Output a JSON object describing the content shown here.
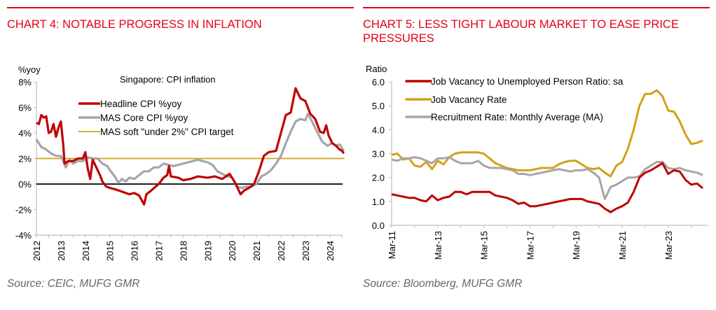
{
  "panels": [
    {
      "title": "CHART 4: NOTABLE PROGRESS IN INFLATION",
      "source": "Source: CEIC, MUFG GMR"
    },
    {
      "title": "CHART 5: LESS TIGHT LABOUR MARKET TO EASE PRICE PRESSURES",
      "title_lines": [
        "CHART 5: LESS TIGHT LABOUR MARKET TO EASE PRICE",
        "PRESSURES"
      ],
      "source": "Source: Bloomberg, MUFG GMR"
    }
  ],
  "colors": {
    "accent": "#e2001a",
    "red": "#c00000",
    "grey": "#a6a6a6",
    "gold": "#d4a017",
    "black": "#000000"
  },
  "chart_data": [
    {
      "type": "line",
      "title": "Singapore: CPI inflation",
      "ylabel": "%yoy",
      "xlabel": "",
      "ylim": [
        -4,
        8
      ],
      "yticks": [
        8,
        6,
        4,
        2,
        0,
        -2,
        -4
      ],
      "ytick_labels": [
        "8%",
        "6%",
        "4%",
        "2%",
        "0%",
        "-2%",
        "-4%"
      ],
      "xlim": [
        2012,
        2024.6
      ],
      "xticks": [
        2012,
        2013,
        2014,
        2015,
        2016,
        2017,
        2018,
        2019,
        2020,
        2021,
        2022,
        2023,
        2024
      ],
      "xtick_labels": [
        "2012",
        "2013",
        "2014",
        "2015",
        "2016",
        "2017",
        "2018",
        "2019",
        "2020",
        "2021",
        "2022",
        "2023",
        "2024"
      ],
      "grid": false,
      "legend": "top-left",
      "series": [
        {
          "name": "Headline CPI %yoy",
          "color": "#c00000",
          "x": [
            2012.0,
            2012.1,
            2012.2,
            2012.3,
            2012.4,
            2012.5,
            2012.6,
            2012.7,
            2012.8,
            2012.9,
            2013.0,
            2013.1,
            2013.15,
            2013.3,
            2013.5,
            2013.7,
            2013.9,
            2014.0,
            2014.1,
            2014.2,
            2014.3,
            2014.45,
            2014.6,
            2014.7,
            2014.85,
            2015.0,
            2015.2,
            2015.5,
            2015.8,
            2016.0,
            2016.2,
            2016.4,
            2016.5,
            2016.7,
            2017.0,
            2017.2,
            2017.35,
            2017.42,
            2017.5,
            2017.8,
            2018.0,
            2018.3,
            2018.6,
            2019.0,
            2019.3,
            2019.6,
            2019.9,
            2020.1,
            2020.35,
            2020.5,
            2020.7,
            2020.9,
            2021.1,
            2021.3,
            2021.5,
            2021.8,
            2022.0,
            2022.2,
            2022.4,
            2022.6,
            2022.7,
            2022.8,
            2023.0,
            2023.2,
            2023.4,
            2023.6,
            2023.75,
            2023.85,
            2023.95,
            2024.1,
            2024.25,
            2024.4,
            2024.5,
            2024.57
          ],
          "y": [
            4.8,
            4.7,
            5.4,
            5.2,
            5.3,
            4.0,
            4.1,
            4.7,
            3.7,
            4.4,
            4.9,
            3.0,
            1.6,
            1.8,
            1.8,
            2.0,
            2.0,
            2.5,
            1.2,
            0.4,
            1.9,
            1.3,
            0.7,
            0.2,
            -0.2,
            -0.3,
            -0.4,
            -0.6,
            -0.8,
            -0.7,
            -0.9,
            -1.6,
            -0.8,
            -0.5,
            0.0,
            0.5,
            0.7,
            1.4,
            0.6,
            0.5,
            0.3,
            0.4,
            0.6,
            0.5,
            0.6,
            0.4,
            0.8,
            0.2,
            -0.8,
            -0.5,
            -0.3,
            0.0,
            1.0,
            2.2,
            2.5,
            2.6,
            4.0,
            5.4,
            5.6,
            7.5,
            7.1,
            6.7,
            6.5,
            5.5,
            5.1,
            4.1,
            4.0,
            4.6,
            3.8,
            3.2,
            3.0,
            2.7,
            2.6,
            2.4
          ]
        },
        {
          "name": "MAS Core CPI %yoy",
          "color": "#a6a6a6",
          "x": [
            2012.0,
            2012.2,
            2012.4,
            2012.6,
            2012.8,
            2013.0,
            2013.1,
            2013.2,
            2013.35,
            2013.5,
            2013.7,
            2013.9,
            2014.1,
            2014.3,
            2014.5,
            2014.7,
            2014.9,
            2015.0,
            2015.2,
            2015.35,
            2015.5,
            2015.65,
            2015.8,
            2016.0,
            2016.2,
            2016.4,
            2016.6,
            2016.8,
            2017.0,
            2017.2,
            2017.4,
            2017.6,
            2017.8,
            2018.0,
            2018.2,
            2018.4,
            2018.6,
            2018.8,
            2019.0,
            2019.2,
            2019.4,
            2019.6,
            2019.8,
            2020.0,
            2020.2,
            2020.4,
            2020.6,
            2020.8,
            2021.0,
            2021.2,
            2021.4,
            2021.6,
            2021.8,
            2022.0,
            2022.2,
            2022.4,
            2022.6,
            2022.8,
            2023.0,
            2023.1,
            2023.3,
            2023.5,
            2023.7,
            2023.9,
            2024.0,
            2024.1,
            2024.25,
            2024.4,
            2024.57
          ],
          "y": [
            3.5,
            2.9,
            2.7,
            2.4,
            2.2,
            2.2,
            1.8,
            1.3,
            1.9,
            1.6,
            1.8,
            1.8,
            2.1,
            2.0,
            2.0,
            1.6,
            1.4,
            1.1,
            0.6,
            0.1,
            0.4,
            0.2,
            0.5,
            0.4,
            0.7,
            1.0,
            1.0,
            1.3,
            1.3,
            1.6,
            1.5,
            1.4,
            1.5,
            1.6,
            1.7,
            1.8,
            1.9,
            1.8,
            1.7,
            1.5,
            1.0,
            0.8,
            0.6,
            0.5,
            -0.2,
            -0.3,
            -0.2,
            -0.2,
            0.0,
            0.6,
            0.8,
            1.1,
            1.6,
            2.2,
            3.2,
            4.1,
            4.9,
            5.1,
            5.0,
            5.5,
            4.8,
            4.0,
            3.3,
            3.0,
            3.1,
            3.2,
            3.0,
            3.1,
            2.6
          ]
        },
        {
          "name": "MAS soft \"under 2%\" CPI target",
          "color": "#d4a017",
          "x": [
            2012.0,
            2024.6
          ],
          "y": [
            2,
            2
          ]
        }
      ],
      "reference_lines": [
        {
          "y": 0,
          "color": "#000000"
        }
      ]
    },
    {
      "type": "line",
      "title": "",
      "ylabel": "Ratio",
      "xlabel": "",
      "ylim": [
        0,
        6
      ],
      "yticks": [
        6.0,
        5.0,
        4.0,
        3.0,
        2.0,
        1.0,
        0.0
      ],
      "ytick_labels": [
        "6.0",
        "5.0",
        "4.0",
        "3.0",
        "2.0",
        "1.0",
        "0.0"
      ],
      "x_start": "Mar-11",
      "x_frequency": "quarterly",
      "xtick_labels": [
        "Mar-11",
        "Mar-13",
        "Mar-15",
        "Mar-17",
        "Mar-19",
        "Mar-21",
        "Mar-23"
      ],
      "grid": false,
      "legend": "top-left",
      "series": [
        {
          "name": "Job Vacancy to Unemployed Person Ratio: sa",
          "color": "#c00000",
          "values": [
            1.3,
            1.25,
            1.2,
            1.15,
            1.15,
            1.05,
            1.0,
            1.25,
            1.05,
            1.15,
            1.2,
            1.4,
            1.4,
            1.3,
            1.4,
            1.4,
            1.4,
            1.4,
            1.25,
            1.2,
            1.15,
            1.05,
            0.9,
            0.95,
            0.8,
            0.8,
            0.85,
            0.9,
            0.95,
            1.0,
            1.05,
            1.1,
            1.1,
            1.1,
            1.0,
            0.95,
            0.9,
            0.7,
            0.55,
            0.7,
            0.8,
            0.95,
            1.4,
            2.0,
            2.2,
            2.3,
            2.45,
            2.6,
            2.15,
            2.3,
            2.25,
            1.9,
            1.7,
            1.75,
            1.55
          ]
        },
        {
          "name": "Job Vacancy Rate",
          "color": "#d4a017",
          "values": [
            2.95,
            3.0,
            2.75,
            2.8,
            2.5,
            2.45,
            2.65,
            2.35,
            2.7,
            2.55,
            2.85,
            3.0,
            3.05,
            3.05,
            3.05,
            3.05,
            3.0,
            2.8,
            2.6,
            2.5,
            2.4,
            2.35,
            2.3,
            2.3,
            2.3,
            2.35,
            2.4,
            2.4,
            2.4,
            2.55,
            2.65,
            2.7,
            2.7,
            2.55,
            2.4,
            2.35,
            2.4,
            2.2,
            2.05,
            2.5,
            2.65,
            3.2,
            4.0,
            5.0,
            5.5,
            5.5,
            5.65,
            5.4,
            4.8,
            4.75,
            4.35,
            3.8,
            3.4,
            3.45,
            3.55
          ]
        },
        {
          "name": "Recruitment Rate: Monthly Average (MA)",
          "color": "#a6a6a6",
          "values": [
            2.75,
            2.7,
            2.8,
            2.8,
            2.85,
            2.8,
            2.7,
            2.6,
            2.8,
            2.8,
            2.85,
            2.7,
            2.6,
            2.6,
            2.6,
            2.7,
            2.5,
            2.4,
            2.4,
            2.4,
            2.35,
            2.3,
            2.15,
            2.15,
            2.1,
            2.15,
            2.2,
            2.25,
            2.3,
            2.35,
            2.3,
            2.25,
            2.3,
            2.3,
            2.35,
            2.2,
            2.0,
            1.1,
            1.6,
            1.7,
            1.85,
            2.0,
            2.0,
            2.05,
            2.35,
            2.5,
            2.65,
            2.65,
            2.4,
            2.35,
            2.4,
            2.3,
            2.25,
            2.2,
            2.1
          ]
        }
      ]
    }
  ]
}
